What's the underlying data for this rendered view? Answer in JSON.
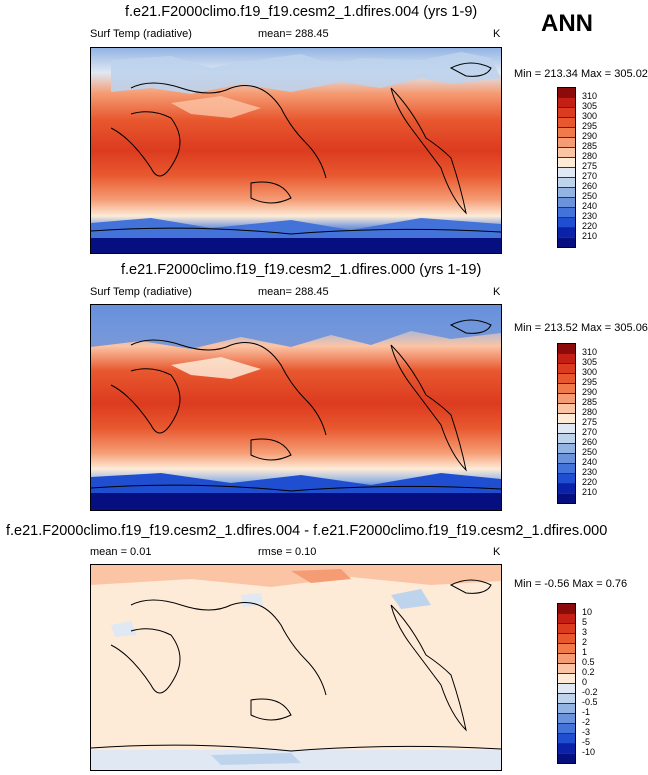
{
  "season": "ANN",
  "panels": [
    {
      "title": "f.e21.F2000climo.f19_f19.cesm2_1.dfires.004 (yrs 1-9)",
      "left_label": "Surf Temp (radiative)",
      "center_label": "mean= 288.45",
      "units": "K",
      "minmax": "Min = 213.34 Max = 305.02",
      "colorbar_labels": [
        "310",
        "305",
        "300",
        "295",
        "290",
        "285",
        "280",
        "275",
        "270",
        "260",
        "250",
        "240",
        "230",
        "220",
        "210"
      ],
      "colorbar_colors": [
        "#8b0a0a",
        "#c31f15",
        "#dc3b1f",
        "#e8582f",
        "#f07a4a",
        "#f59c74",
        "#fbc4a5",
        "#fdebd8",
        "#dfe8f3",
        "#bed3ec",
        "#93b4e3",
        "#6b92dc",
        "#4372d9",
        "#1f4fd0",
        "#0b22a8",
        "#050f80"
      ]
    },
    {
      "title": "f.e21.F2000climo.f19_f19.cesm2_1.dfires.000 (yrs 1-19)",
      "left_label": "Surf Temp (radiative)",
      "center_label": "mean= 288.45",
      "units": "K",
      "minmax": "Min = 213.52 Max = 305.06",
      "colorbar_labels": [
        "310",
        "305",
        "300",
        "295",
        "290",
        "285",
        "280",
        "275",
        "270",
        "260",
        "250",
        "240",
        "230",
        "220",
        "210"
      ],
      "colorbar_colors": [
        "#8b0a0a",
        "#c31f15",
        "#dc3b1f",
        "#e8582f",
        "#f07a4a",
        "#f59c74",
        "#fbc4a5",
        "#fdebd8",
        "#dfe8f3",
        "#bed3ec",
        "#93b4e3",
        "#6b92dc",
        "#4372d9",
        "#1f4fd0",
        "#0b22a8",
        "#050f80"
      ]
    },
    {
      "title": "f.e21.F2000climo.f19_f19.cesm2_1.dfires.004 - f.e21.F2000climo.f19_f19.cesm2_1.dfires.000",
      "left_label": "mean =   0.01",
      "center_label": "rmse =   0.10",
      "units": "K",
      "minmax": "Min =  -0.56 Max =   0.76",
      "colorbar_labels": [
        "10",
        "5",
        "3",
        "2",
        "1",
        "0.5",
        "0.2",
        "0",
        "-0.2",
        "-0.5",
        "-1",
        "-2",
        "-3",
        "-5",
        "-10"
      ],
      "colorbar_colors": [
        "#8b0a0a",
        "#c31f15",
        "#dc3b1f",
        "#e8582f",
        "#f07a4a",
        "#f59c74",
        "#fbc4a5",
        "#fdebd8",
        "#dfe8f3",
        "#bed3ec",
        "#93b4e3",
        "#6b92dc",
        "#4372d9",
        "#1f4fd0",
        "#0b22a8",
        "#050f80"
      ]
    }
  ],
  "chart_data": [
    {
      "type": "heatmap",
      "title": "f.e21.F2000climo.f19_f19.cesm2_1.dfires.004 (yrs 1-9)",
      "variable": "Surf Temp (radiative)",
      "units": "K",
      "mean": 288.45,
      "min": 213.34,
      "max": 305.02,
      "contour_levels": [
        210,
        220,
        230,
        240,
        250,
        260,
        270,
        275,
        280,
        285,
        290,
        295,
        300,
        305,
        310
      ],
      "projection": "global cylindrical equidistant, Pacific-centered"
    },
    {
      "type": "heatmap",
      "title": "f.e21.F2000climo.f19_f19.cesm2_1.dfires.000 (yrs 1-19)",
      "variable": "Surf Temp (radiative)",
      "units": "K",
      "mean": 288.45,
      "min": 213.52,
      "max": 305.06,
      "contour_levels": [
        210,
        220,
        230,
        240,
        250,
        260,
        270,
        275,
        280,
        285,
        290,
        295,
        300,
        305,
        310
      ],
      "projection": "global cylindrical equidistant, Pacific-centered"
    },
    {
      "type": "heatmap",
      "title": "f.e21.F2000climo.f19_f19.cesm2_1.dfires.004 - f.e21.F2000climo.f19_f19.cesm2_1.dfires.000",
      "units": "K",
      "mean": 0.01,
      "rmse": 0.1,
      "min": -0.56,
      "max": 0.76,
      "contour_levels": [
        -10,
        -5,
        -3,
        -2,
        -1,
        -0.5,
        -0.2,
        0,
        0.2,
        0.5,
        1,
        2,
        3,
        5,
        10
      ],
      "projection": "global cylindrical equidistant, Pacific-centered"
    }
  ]
}
